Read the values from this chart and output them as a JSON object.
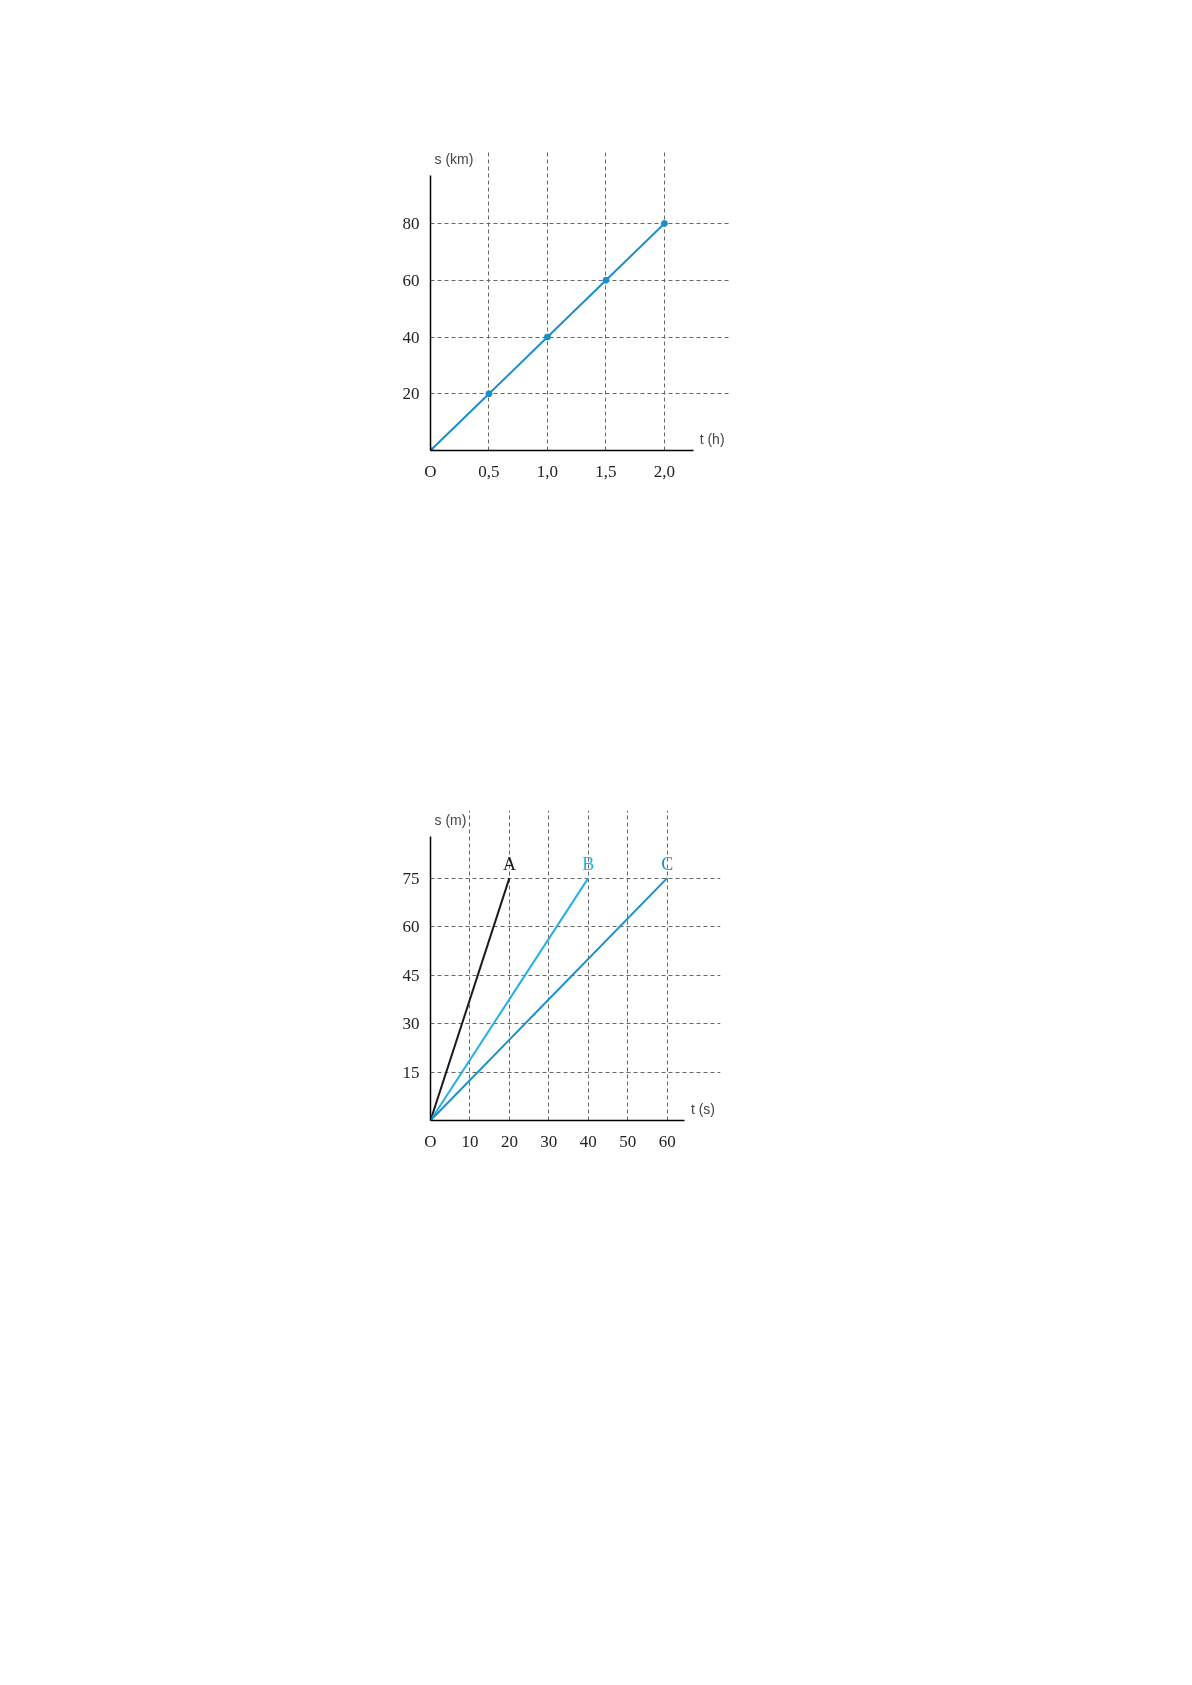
{
  "chart_data": [
    {
      "type": "line",
      "xlabel": "t (h)",
      "ylabel": "s (km)",
      "x": [
        0,
        0.5,
        1.0,
        1.5,
        2.0
      ],
      "series": [
        {
          "color": "#1a8fc9",
          "values": [
            0,
            20,
            40,
            60,
            80
          ]
        }
      ],
      "xlim": [
        0,
        2.25
      ],
      "ylim": [
        0,
        97
      ],
      "xticks": [
        {
          "value": 0,
          "label": "O"
        },
        {
          "value": 0.5,
          "label": "0,5"
        },
        {
          "value": 1.0,
          "label": "1,0"
        },
        {
          "value": 1.5,
          "label": "1,5"
        },
        {
          "value": 2.0,
          "label": "2,0"
        }
      ],
      "yticks": [
        20,
        40,
        60,
        80
      ],
      "grid": true,
      "marker": "circle",
      "line_style": "solid"
    },
    {
      "type": "line",
      "xlabel": "t (s)",
      "ylabel": "s (m)",
      "series": [
        {
          "name": "A",
          "color": "#1a1a1a",
          "x": [
            0,
            20
          ],
          "values": [
            0,
            75
          ]
        },
        {
          "name": "B",
          "color": "#22b0e6",
          "x": [
            0,
            40
          ],
          "values": [
            0,
            75
          ]
        },
        {
          "name": "C",
          "color": "#1a8fc9",
          "x": [
            0,
            60
          ],
          "values": [
            0,
            75
          ]
        }
      ],
      "xlim": [
        0,
        64.5
      ],
      "ylim": [
        0,
        88
      ],
      "xticks": [
        {
          "value": 0,
          "label": "O"
        },
        10,
        20,
        30,
        40,
        50,
        60
      ],
      "yticks": [
        15,
        30,
        45,
        60,
        75
      ],
      "grid": true,
      "line_style": "solid"
    }
  ]
}
